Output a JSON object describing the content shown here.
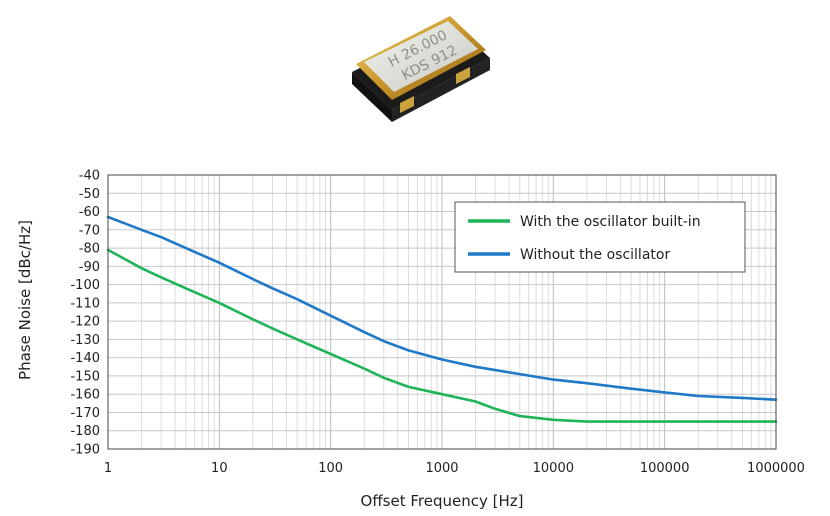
{
  "product_photo": {
    "icon": "crystal-oscillator-photo-icon",
    "marking_line1": "H 26.000",
    "marking_line2": "KDS 912"
  },
  "chart_data": {
    "type": "line",
    "xscale": "log",
    "xlim": [
      1,
      1000000
    ],
    "ylim": [
      -190,
      -40
    ],
    "xlabel": "Offset Frequency [Hz]",
    "ylabel": "Phase Noise [dBc/Hz]",
    "x_tick_labels": [
      "1",
      "10",
      "100",
      "1000",
      "10000",
      "100000",
      "1000000"
    ],
    "y_tick_labels": [
      "-40",
      "-50",
      "-60",
      "-70",
      "-80",
      "-90",
      "-100",
      "-110",
      "-120",
      "-130",
      "-140",
      "-150",
      "-160",
      "-170",
      "-180",
      "-190"
    ],
    "grid": true,
    "legend_position": "top-right",
    "series": [
      {
        "name": "With the oscillator built-in",
        "color": "#1fb45a",
        "x": [
          1,
          2,
          3,
          5,
          10,
          20,
          30,
          50,
          100,
          200,
          300,
          500,
          1000,
          2000,
          3000,
          5000,
          10000,
          20000,
          50000,
          100000,
          200000,
          500000,
          1000000
        ],
        "y": [
          -81,
          -91,
          -96,
          -102,
          -110,
          -119,
          -124,
          -130,
          -138,
          -146,
          -151,
          -156,
          -160,
          -164,
          -168,
          -172,
          -174,
          -175,
          -175,
          -175,
          -175,
          -175,
          -175
        ]
      },
      {
        "name": "Without the oscillator",
        "color": "#1f78c8",
        "x": [
          1,
          2,
          3,
          5,
          10,
          20,
          30,
          50,
          100,
          200,
          300,
          500,
          1000,
          2000,
          5000,
          10000,
          20000,
          50000,
          100000,
          200000,
          500000,
          1000000
        ],
        "y": [
          -63,
          -70,
          -74,
          -80,
          -88,
          -97,
          -102,
          -108,
          -117,
          -126,
          -131,
          -136,
          -141,
          -145,
          -149,
          -152,
          -154,
          -157,
          -159,
          -161,
          -162,
          -163
        ]
      }
    ]
  }
}
